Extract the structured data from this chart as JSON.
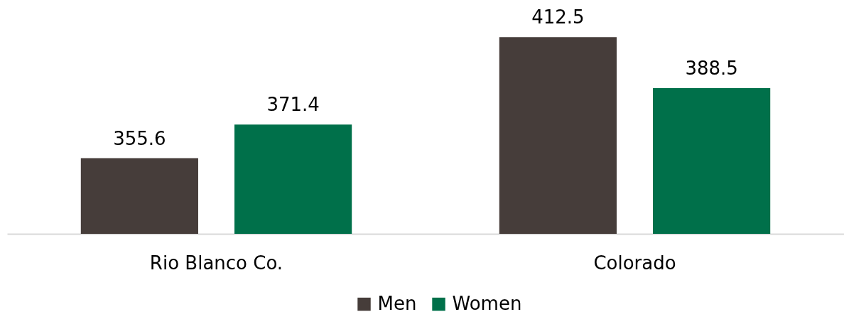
{
  "chart_data": {
    "type": "bar",
    "categories": [
      "Rio Blanco Co.",
      "Colorado"
    ],
    "series": [
      {
        "name": "Men",
        "color": "#463d3a",
        "values": [
          355.6,
          412.5
        ]
      },
      {
        "name": "Women",
        "color": "#00704a",
        "values": [
          371.4,
          388.5
        ]
      }
    ],
    "ylim": [
      320,
      430
    ],
    "tick_labels": "x",
    "data_labels": true,
    "legend": "bottom"
  }
}
